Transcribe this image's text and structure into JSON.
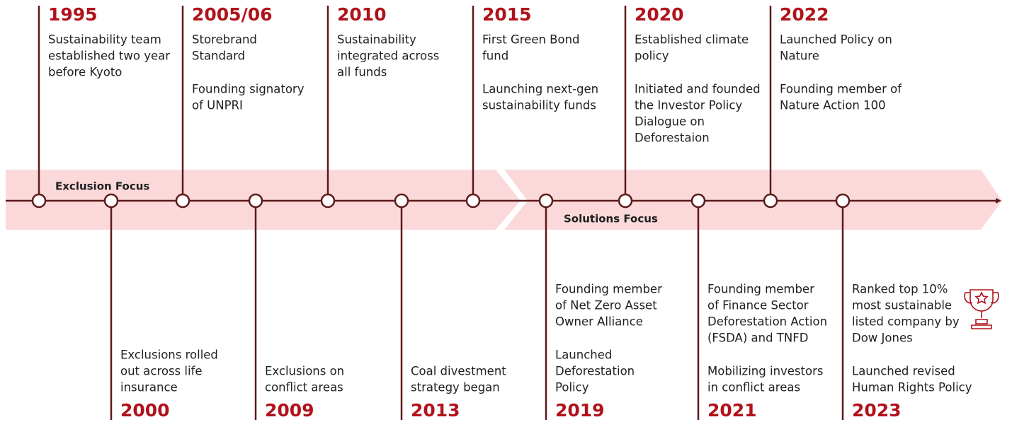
{
  "bands": [
    {
      "label": "Exclusion Focus"
    },
    {
      "label": "Solutions Focus"
    }
  ],
  "top_events": [
    {
      "year": "1995",
      "paragraphs": [
        [
          "Sustainability team",
          "established two year",
          "before Kyoto"
        ]
      ]
    },
    {
      "year": "2005/06",
      "paragraphs": [
        [
          "Storebrand",
          "Standard"
        ],
        [
          "Founding signatory",
          "of UNPRI"
        ]
      ]
    },
    {
      "year": "2010",
      "paragraphs": [
        [
          "Sustainability",
          "integrated across",
          "all funds"
        ]
      ]
    },
    {
      "year": "2015",
      "paragraphs": [
        [
          "First Green Bond",
          "fund"
        ],
        [
          "Launching next-gen",
          "sustainability funds"
        ]
      ]
    },
    {
      "year": "2020",
      "paragraphs": [
        [
          "Established climate",
          "policy"
        ],
        [
          "Initiated and founded",
          "the Investor Policy",
          "Dialogue on",
          "Deforestaion"
        ]
      ]
    },
    {
      "year": "2022",
      "paragraphs": [
        [
          "Launched Policy on",
          "Nature"
        ],
        [
          "Founding member of",
          "Nature Action 100"
        ]
      ]
    }
  ],
  "bottom_events": [
    {
      "year": "2000",
      "paragraphs": [
        [
          "Exclusions rolled",
          "out across life",
          "insurance"
        ]
      ]
    },
    {
      "year": "2009",
      "paragraphs": [
        [
          "Exclusions on",
          "conflict areas"
        ]
      ]
    },
    {
      "year": "2013",
      "paragraphs": [
        [
          "Coal divestment",
          "strategy began"
        ]
      ]
    },
    {
      "year": "2019",
      "paragraphs": [
        [
          "Founding member",
          "of Net Zero Asset",
          "Owner Alliance"
        ],
        [
          "Launched",
          "Deforestation",
          "Policy"
        ]
      ]
    },
    {
      "year": "2021",
      "paragraphs": [
        [
          "Founding member",
          "of Finance Sector",
          "Deforestation Action",
          "(FSDA) and TNFD"
        ],
        [
          "Mobilizing investors",
          "in conflict areas"
        ]
      ]
    },
    {
      "year": "2023",
      "paragraphs": [
        [
          "Ranked top 10%",
          "most sustainable",
          "listed company by",
          "Dow Jones"
        ],
        [
          "Launched revised",
          "Human Rights Policy"
        ]
      ]
    }
  ]
}
